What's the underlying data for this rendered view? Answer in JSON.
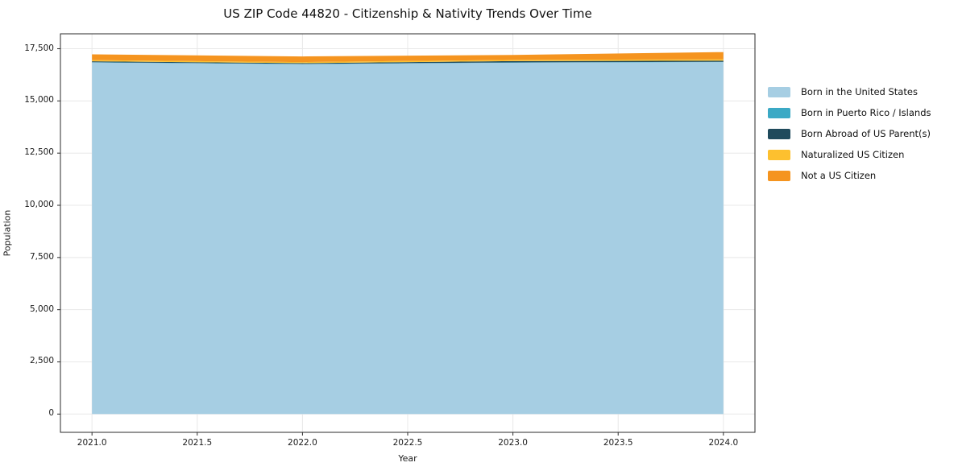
{
  "header": {
    "title": "US ZIP Code 44820 - Citizenship & Nativity Trends Over Time"
  },
  "chart_data": {
    "type": "area",
    "stacked": true,
    "title": "US ZIP Code 44820 - Citizenship & Nativity Trends Over Time",
    "xlabel": "Year",
    "ylabel": "Population",
    "x": [
      2021,
      2022,
      2023,
      2024
    ],
    "series": [
      {
        "name": "Born in the United States",
        "color": "#A6CEE3",
        "values": [
          16840,
          16760,
          16830,
          16860
        ]
      },
      {
        "name": "Born in Puerto Rico / Islands",
        "color": "#3BA9C5",
        "values": [
          15,
          12,
          18,
          15
        ]
      },
      {
        "name": "Born Abroad of US Parent(s)",
        "color": "#1F4A5C",
        "values": [
          45,
          40,
          60,
          55
        ]
      },
      {
        "name": "Naturalized US Citizen",
        "color": "#FDC02F",
        "values": [
          55,
          50,
          60,
          65
        ]
      },
      {
        "name": "Not a US Citizen",
        "color": "#F5941F",
        "values": [
          275,
          270,
          235,
          345
        ]
      }
    ],
    "xticks": {
      "values": [
        2021.0,
        2021.5,
        2022.0,
        2022.5,
        2023.0,
        2023.5,
        2024.0
      ],
      "labels": [
        "2021.0",
        "2021.5",
        "2022.0",
        "2022.5",
        "2023.0",
        "2023.5",
        "2024.0"
      ]
    },
    "yticks": {
      "values": [
        0,
        2500,
        5000,
        7500,
        10000,
        12500,
        15000,
        17500
      ],
      "labels": [
        "0",
        "2,500",
        "5,000",
        "7,500",
        "10,000",
        "12,500",
        "15,000",
        "17,500"
      ]
    },
    "xlim": [
      2020.85,
      2024.15
    ],
    "ylim": [
      -875,
      18215
    ],
    "grid": true,
    "legend_position": "right",
    "colors": {
      "gridline": "#e8e8e8",
      "spine": "#2b2b2b",
      "background": "#ffffff"
    }
  }
}
